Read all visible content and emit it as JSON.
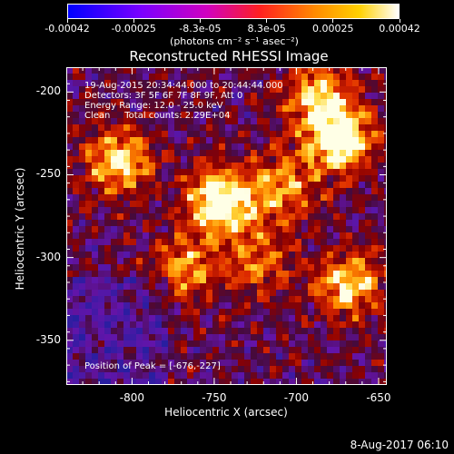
{
  "colorbar": {
    "tick_labels": [
      "-0.00042",
      "-0.00025",
      "-8.3e-05",
      "8.3e-05",
      "0.00025",
      "0.00042"
    ],
    "units_label": "(photons cm⁻² s⁻¹ asec⁻²)",
    "range": [
      -0.00042,
      0.00042
    ],
    "colors": [
      "#0000ff",
      "#7a00ff",
      "#d000c0",
      "#ff2020",
      "#ff8c00",
      "#ffffff"
    ]
  },
  "title": "Reconstructed RHESSI Image",
  "annotations": {
    "time_range": "19-Aug-2015 20:34:44.000 to 20:44:44.000",
    "detectors": "Detectors: 3F 5F 6F 7F 8F 9F, Att 0",
    "energy": "Energy Range: 12.0 - 25.0 keV",
    "method": "Clean     Total counts: 2.29E+04",
    "peak": "Position of Peak = [-676,-227]"
  },
  "axes": {
    "xlabel": "Heliocentric X (arcsec)",
    "ylabel": "Heliocentric Y (arcsec)",
    "xticks": [
      "-800",
      "-750",
      "-700",
      "-650"
    ],
    "yticks": [
      "-200",
      "-250",
      "-300",
      "-350"
    ],
    "xlim": [
      -840,
      -645
    ],
    "ylim": [
      -377,
      -185
    ]
  },
  "image": {
    "peak_position": [
      -676,
      -227
    ],
    "bright_regions": [
      {
        "x": -748,
        "y": -265,
        "intensity": 1.0
      },
      {
        "x": -676,
        "y": -227,
        "intensity": 1.0
      },
      {
        "x": -810,
        "y": -240,
        "intensity": 0.8
      },
      {
        "x": -670,
        "y": -315,
        "intensity": 0.75
      },
      {
        "x": -690,
        "y": -200,
        "intensity": 0.7
      },
      {
        "x": -770,
        "y": -305,
        "intensity": 0.55
      },
      {
        "x": -710,
        "y": -255,
        "intensity": 0.6
      },
      {
        "x": -725,
        "y": -300,
        "intensity": 0.5
      }
    ]
  },
  "timestamp": "8-Aug-2017 06:10"
}
